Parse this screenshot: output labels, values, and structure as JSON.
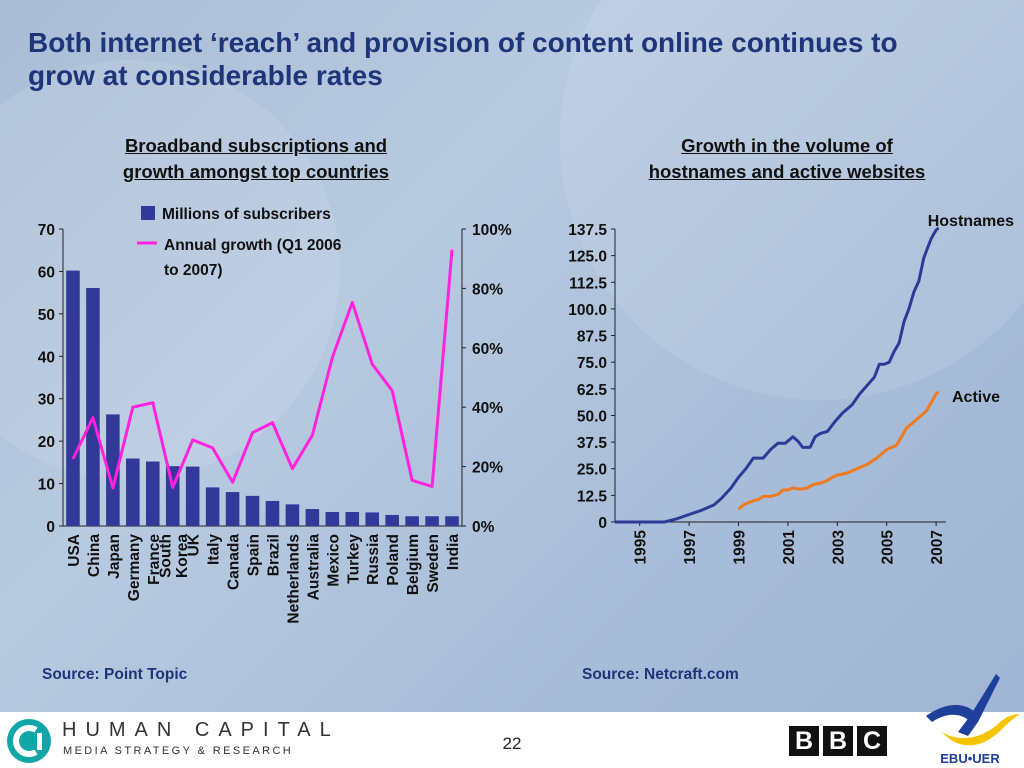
{
  "slide_title": "Both internet ‘reach’ and provision of content online continues to grow at considerable rates",
  "left_panel": {
    "title_line1": "Broadband subscriptions and",
    "title_line2": "growth amongst top countries",
    "source": "Source: Point Topic"
  },
  "right_panel": {
    "title_line1": "Growth in the volume of",
    "title_line2": "hostnames and active websites",
    "source": "Source: Netcraft.com"
  },
  "footer": {
    "company_name": "HUMAN CAPITAL",
    "company_tagline": "MEDIA STRATEGY & RESEARCH",
    "page_number": "22",
    "bbc_letters": [
      "B",
      "B",
      "C"
    ],
    "ebu_label": "EBU•UER"
  },
  "colors": {
    "title": "#1f3479",
    "bars": "#33399a",
    "growth_line": "#ff22dd",
    "hostnames_line": "#2e3a98",
    "active_line": "#f07a1e"
  },
  "chart_data": [
    {
      "type": "bar",
      "categories": [
        "USA",
        "China",
        "Japan",
        "Germany",
        "France",
        "South Korea",
        "UK",
        "Italy",
        "Canada",
        "Spain",
        "Brazil",
        "Netherlands",
        "Australia",
        "Mexico",
        "Turkey",
        "Russia",
        "Poland",
        "Belgium",
        "Sweden",
        "India"
      ],
      "category_labels": [
        [
          "USA"
        ],
        [
          "China"
        ],
        [
          "Japan"
        ],
        [
          "Germany"
        ],
        [
          "France"
        ],
        [
          "South",
          "Korea"
        ],
        [
          "UK"
        ],
        [
          "Italy"
        ],
        [
          "Canada"
        ],
        [
          "Spain"
        ],
        [
          "Brazil"
        ],
        [
          "Netherlands"
        ],
        [
          "Australia"
        ],
        [
          "Mexico"
        ],
        [
          "Turkey"
        ],
        [
          "Russia"
        ],
        [
          "Poland"
        ],
        [
          "Belgium"
        ],
        [
          "Sweden"
        ],
        [
          "India"
        ]
      ],
      "series": [
        {
          "name": "Millions of subscribers",
          "type": "bar",
          "axis": "left",
          "values": [
            60.2,
            56.1,
            26.3,
            15.9,
            15.2,
            14.1,
            14.0,
            9.1,
            8.0,
            7.1,
            5.9,
            5.1,
            4.0,
            3.3,
            3.3,
            3.2,
            2.6,
            2.3,
            2.3,
            2.3
          ]
        },
        {
          "name": "Annual growth (Q1 2006 to 2007)",
          "type": "line",
          "axis": "right",
          "values": [
            22.6,
            36.5,
            12.8,
            40.0,
            41.5,
            13.0,
            29.0,
            26.3,
            14.7,
            31.4,
            34.8,
            19.3,
            30.6,
            56.7,
            75.3,
            54.5,
            45.6,
            15.4,
            13.3,
            93.0
          ]
        }
      ],
      "legend": [
        "Millions of subscribers",
        "Annual growth (Q1 2006",
        "to 2007)"
      ],
      "legend_position": "top",
      "left_axis": {
        "ylim": [
          0,
          70
        ],
        "ticks": [
          0,
          10,
          20,
          30,
          40,
          50,
          60,
          70
        ],
        "tick_labels": [
          "0",
          "10",
          "20",
          "30",
          "40",
          "50",
          "60",
          "70"
        ]
      },
      "right_axis": {
        "ylim": [
          0,
          100
        ],
        "ticks": [
          0,
          20,
          40,
          60,
          80,
          100
        ],
        "tick_labels": [
          "0%",
          "20%",
          "40%",
          "60%",
          "80%",
          "100%"
        ]
      },
      "grid": false
    },
    {
      "type": "line",
      "x_range": [
        1994.0,
        2007.4
      ],
      "x_ticks": [
        1995,
        1997,
        1999,
        2001,
        2003,
        2005,
        2007
      ],
      "x_tick_labels": [
        "1995",
        "1997",
        "1999",
        "2001",
        "2003",
        "2005",
        "2007"
      ],
      "ylim": [
        0,
        137.5
      ],
      "y_ticks": [
        0,
        12.5,
        25,
        37.5,
        50,
        62.5,
        75,
        87.5,
        100,
        112.5,
        125,
        137.5
      ],
      "y_tick_labels": [
        "0",
        "12.5",
        "25.0",
        "37.5",
        "50.0",
        "62.5",
        "75.0",
        "87.5",
        "100.0",
        "112.5",
        "125.0",
        "137.5"
      ],
      "grid": false,
      "series": [
        {
          "name": "Hostnames",
          "label_position": "end",
          "x": [
            1994.0,
            1996.0,
            1996.5,
            1997.0,
            1997.5,
            1998.0,
            1998.3,
            1998.7,
            1999.0,
            1999.3,
            1999.6,
            1999.8,
            2000.0,
            2000.3,
            2000.6,
            2000.9,
            2001.2,
            2001.4,
            2001.6,
            2001.9,
            2002.1,
            2002.3,
            2002.6,
            2002.9,
            2003.2,
            2003.6,
            2003.9,
            2004.2,
            2004.5,
            2004.7,
            2004.9,
            2005.1,
            2005.3,
            2005.5,
            2005.7,
            2005.9,
            2006.1,
            2006.3,
            2006.5,
            2006.7,
            2006.8,
            2006.9,
            2007.0,
            2007.1
          ],
          "y": [
            0,
            0,
            1.5,
            3.5,
            5.5,
            8,
            11,
            16,
            21,
            25,
            30,
            30,
            30,
            34,
            37,
            37,
            40,
            38,
            35,
            35,
            40,
            41.5,
            42.5,
            47,
            51,
            55,
            60,
            64,
            68,
            74,
            74,
            75,
            80,
            84,
            94,
            100,
            108,
            113,
            124,
            130,
            133,
            135,
            137,
            138
          ]
        },
        {
          "name": "Active",
          "label_position": "end",
          "x": [
            1999.0,
            1999.2,
            1999.4,
            1999.6,
            1999.8,
            2000.0,
            2000.3,
            2000.6,
            2000.8,
            2001.0,
            2001.2,
            2001.4,
            2001.6,
            2001.8,
            2002.0,
            2002.2,
            2002.4,
            2002.6,
            2002.8,
            2003.0,
            2003.2,
            2003.4,
            2003.6,
            2003.8,
            2004.0,
            2004.2,
            2004.4,
            2004.6,
            2004.8,
            2005.0,
            2005.2,
            2005.4,
            2005.6,
            2005.8,
            2006.0,
            2006.2,
            2006.4,
            2006.6,
            2006.8,
            2006.9,
            2007.0,
            2007.1
          ],
          "y": [
            6,
            8,
            9,
            10,
            10.5,
            12,
            12,
            13,
            15,
            15,
            16,
            15.5,
            15.5,
            16,
            17.5,
            18,
            18.5,
            19.5,
            21,
            22,
            22.5,
            23,
            24,
            25,
            26,
            27,
            28.5,
            30,
            32,
            34,
            35,
            36,
            40,
            44,
            46,
            48,
            50,
            52,
            56,
            58,
            60,
            61
          ]
        }
      ]
    }
  ]
}
